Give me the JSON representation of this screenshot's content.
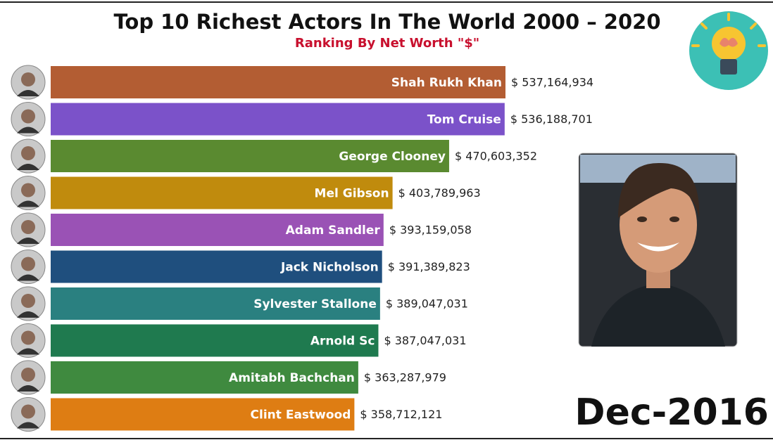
{
  "chart_data": {
    "type": "bar",
    "orientation": "horizontal",
    "title": "Top 10 Richest Actors In The World 2000 – 2020",
    "subtitle": "Ranking By Net Worth \"$\"",
    "date_label": "Dec-2016",
    "categories": [
      "Shah Rukh Khan",
      "Tom Cruise",
      "George Clooney",
      "Mel Gibson",
      "Adam Sandler",
      "Jack Nicholson",
      "Sylvester Stallone",
      "Arnold Sc",
      "Amitabh Bachchan",
      "Clint Eastwood"
    ],
    "values": [
      537164934,
      536188701,
      470603352,
      403789963,
      393159058,
      391389823,
      389047031,
      387047031,
      363287979,
      358712121
    ],
    "value_labels": [
      "$ 537,164,934",
      "$ 536,188,701",
      "$ 470,603,352",
      "$ 403,789,963",
      "$ 393,159,058",
      "$ 391,389,823",
      "$ 389,047,031",
      "$ 387,047,031",
      "$ 363,287,979",
      "$ 358,712,121"
    ],
    "colors": [
      "#b35d33",
      "#7b52c9",
      "#5a8a30",
      "#c08b0d",
      "#9a52b5",
      "#1f4f7e",
      "#2a8080",
      "#1f7a4f",
      "#3f8a3f",
      "#de7d13"
    ]
  }
}
